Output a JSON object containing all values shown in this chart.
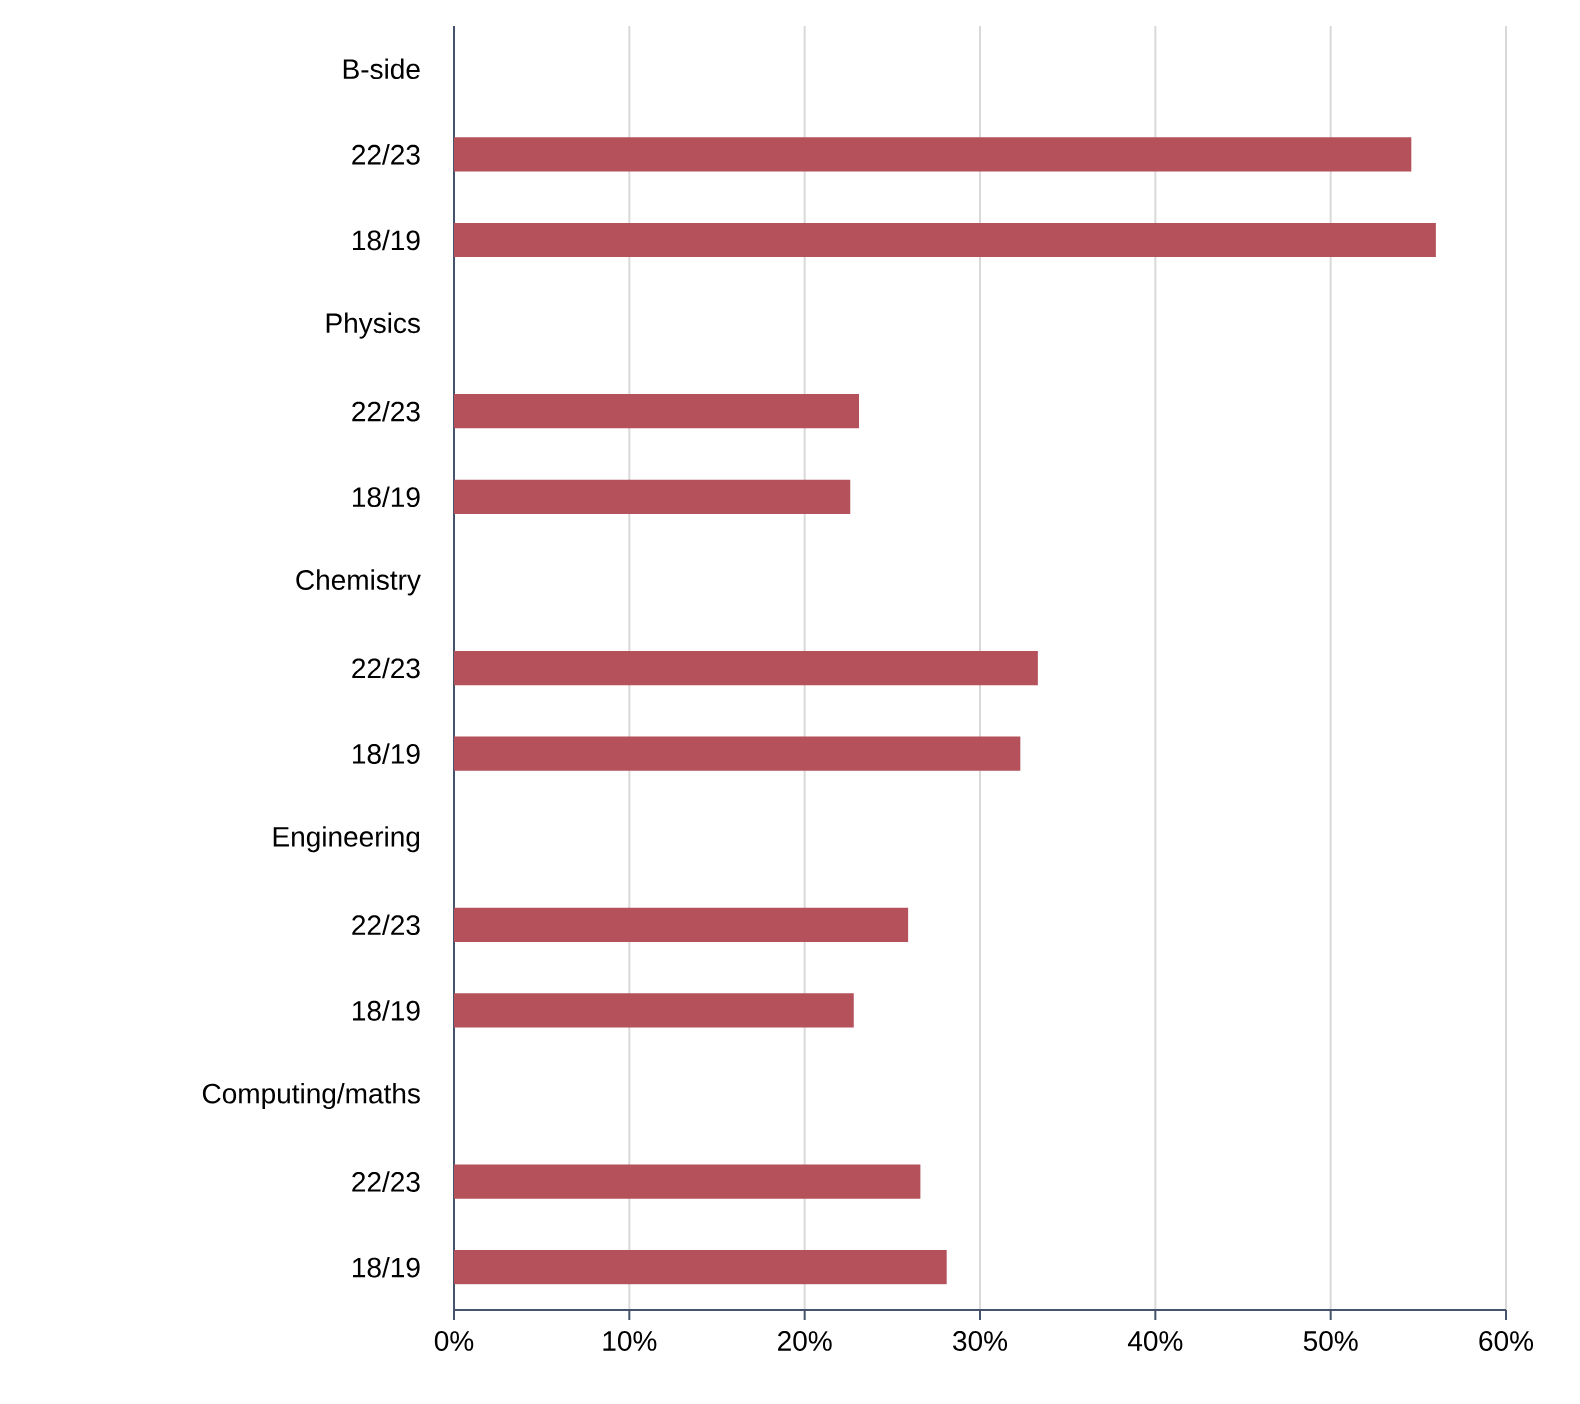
{
  "chart_data": {
    "type": "bar",
    "orientation": "horizontal",
    "categories": [
      "B-side",
      "22/23",
      "18/19",
      "Physics",
      "22/23",
      "18/19",
      "Chemistry",
      "22/23",
      "18/19",
      "Engineering",
      "22/23",
      "18/19",
      "Computing/maths",
      "22/23",
      "18/19"
    ],
    "values": [
      null,
      54.6,
      56.0,
      null,
      23.1,
      22.6,
      null,
      33.3,
      32.3,
      null,
      25.9,
      22.8,
      null,
      26.6,
      28.1
    ],
    "color": "#b5515b",
    "xlim": [
      0,
      60
    ],
    "xticks": [
      {
        "value": 0,
        "label": "0%"
      },
      {
        "value": 10,
        "label": "10%"
      },
      {
        "value": 20,
        "label": "20%"
      },
      {
        "value": 30,
        "label": "30%"
      },
      {
        "value": 40,
        "label": "40%"
      },
      {
        "value": 50,
        "label": "50%"
      },
      {
        "value": 60,
        "label": "60%"
      }
    ],
    "grid": "x"
  }
}
